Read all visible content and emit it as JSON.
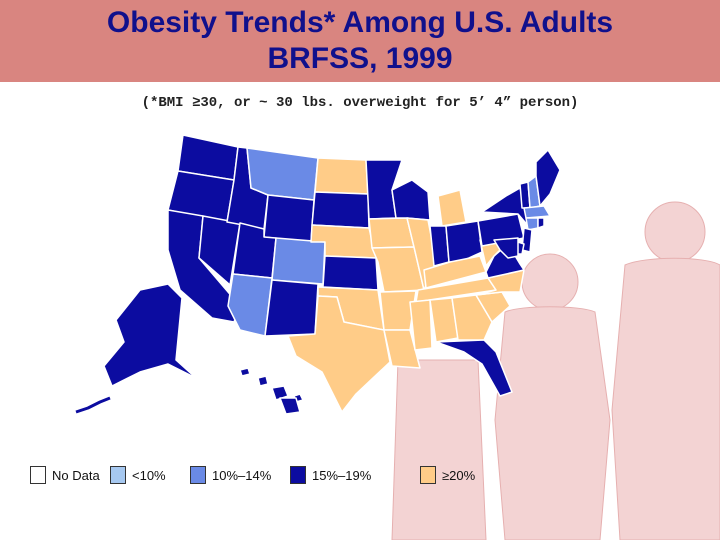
{
  "header": {
    "title_line1": "Obesity Trends* Among U.S. Adults",
    "title_line2": "BRFSS, 1999"
  },
  "subtitle": "(*BMI ≥30, or ~ 30 lbs. overweight for 5’ 4” person)",
  "colors": {
    "band": "#d98580",
    "title": "#10108c",
    "no_data": "#ffffff",
    "lt10": "#a6c8f0",
    "p10_14": "#6a8ae6",
    "p15_19": "#0c0ca0",
    "p20_plus": "#ffcc88"
  },
  "legend": [
    {
      "label": "No Data",
      "color_key": "no_data"
    },
    {
      "label": "<10%",
      "color_key": "lt10"
    },
    {
      "label": "10%–14%",
      "color_key": "p10_14"
    },
    {
      "label": "15%–19%",
      "color_key": "p15_19"
    },
    {
      "label": "≥20%",
      "color_key": "p20_plus"
    }
  ],
  "states": {
    "WA": "15-19",
    "OR": "15-19",
    "CA": "15-19",
    "NV": "15-19",
    "ID": "15-19",
    "MT": "10-14",
    "WY": "15-19",
    "UT": "15-19",
    "CO": "10-14",
    "AZ": "10-14",
    "NM": "15-19",
    "ND": "20+",
    "SD": "15-19",
    "NE": "20+",
    "KS": "15-19",
    "OK": "20+",
    "TX": "20+",
    "MN": "15-19",
    "IA": "20+",
    "MO": "20+",
    "AR": "20+",
    "LA": "20+",
    "WI": "15-19",
    "IL": "20+",
    "MI": "20+",
    "IN": "15-19",
    "OH": "15-19",
    "KY": "20+",
    "TN": "20+",
    "MS": "20+",
    "AL": "20+",
    "GA": "20+",
    "FL": "15-19",
    "SC": "20+",
    "NC": "20+",
    "VA": "15-19",
    "WV": "20+",
    "PA": "15-19",
    "NY": "15-19",
    "ME": "15-19",
    "NH": "10-14",
    "VT": "15-19",
    "MA": "10-14",
    "CT": "10-14",
    "RI": "15-19",
    "NJ": "15-19",
    "DE": "15-19",
    "MD": "15-19",
    "AK": "15-19",
    "HI": "15-19"
  }
}
